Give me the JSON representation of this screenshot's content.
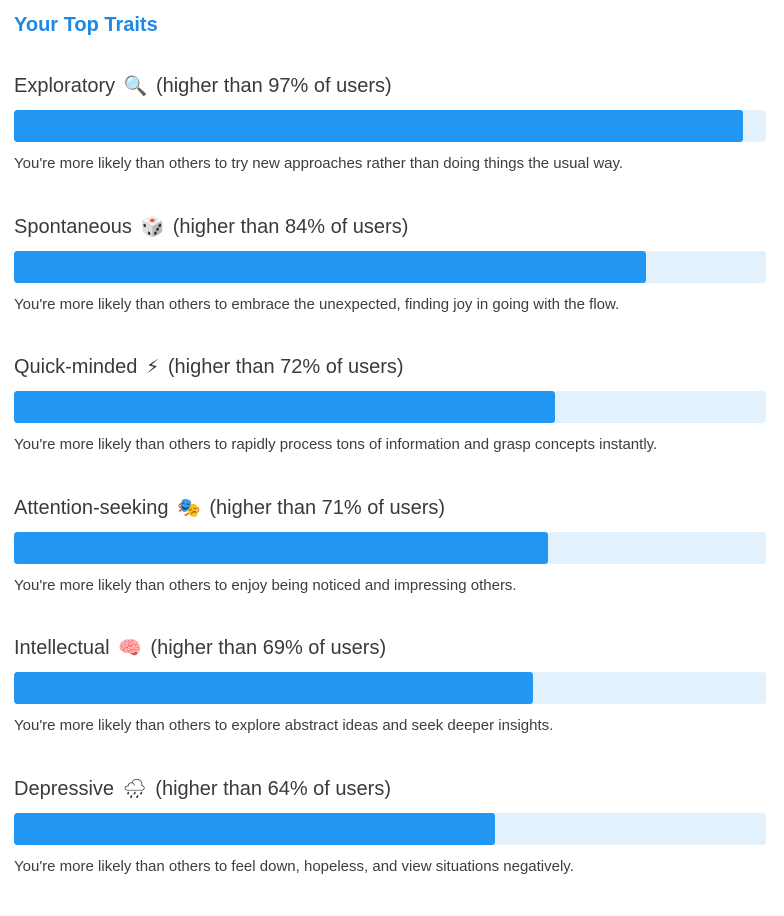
{
  "header": {
    "title": "Your Top Traits"
  },
  "colors": {
    "accent": "#1e88e5",
    "bar_fill": "#2196f3",
    "bar_track": "#e3f1fd"
  },
  "traits": [
    {
      "name": "Exploratory",
      "emoji": "🔍",
      "icon": "magnifying-glass-icon",
      "percentile_text": "(higher than 97% of users)",
      "fill_fraction": 0.97,
      "description": "You're more likely than others to try new approaches rather than doing things the usual way."
    },
    {
      "name": "Spontaneous",
      "emoji": "🎲",
      "icon": "dice-icon",
      "percentile_text": "(higher than 84% of users)",
      "fill_fraction": 0.84,
      "description": "You're more likely than others to embrace the unexpected, finding joy in going with the flow."
    },
    {
      "name": "Quick-minded",
      "emoji": "⚡",
      "icon": "lightning-icon",
      "percentile_text": "(higher than 72% of users)",
      "fill_fraction": 0.72,
      "description": "You're more likely than others to rapidly process tons of information and grasp concepts instantly."
    },
    {
      "name": "Attention-seeking",
      "emoji": "🎭",
      "icon": "spotlight-icon",
      "percentile_text": "(higher than 71% of users)",
      "fill_fraction": 0.71,
      "description": "You're more likely than others to enjoy being noticed and impressing others."
    },
    {
      "name": "Intellectual",
      "emoji": "🧠",
      "icon": "brain-icon",
      "percentile_text": "(higher than 69% of users)",
      "fill_fraction": 0.69,
      "description": "You're more likely than others to explore abstract ideas and seek deeper insights."
    },
    {
      "name": "Depressive",
      "emoji": "🌧",
      "icon": "rain-cloud-icon",
      "percentile_text": "(higher than 64% of users)",
      "fill_fraction": 0.64,
      "description": "You're more likely than others to feel down, hopeless, and view situations negatively."
    }
  ]
}
